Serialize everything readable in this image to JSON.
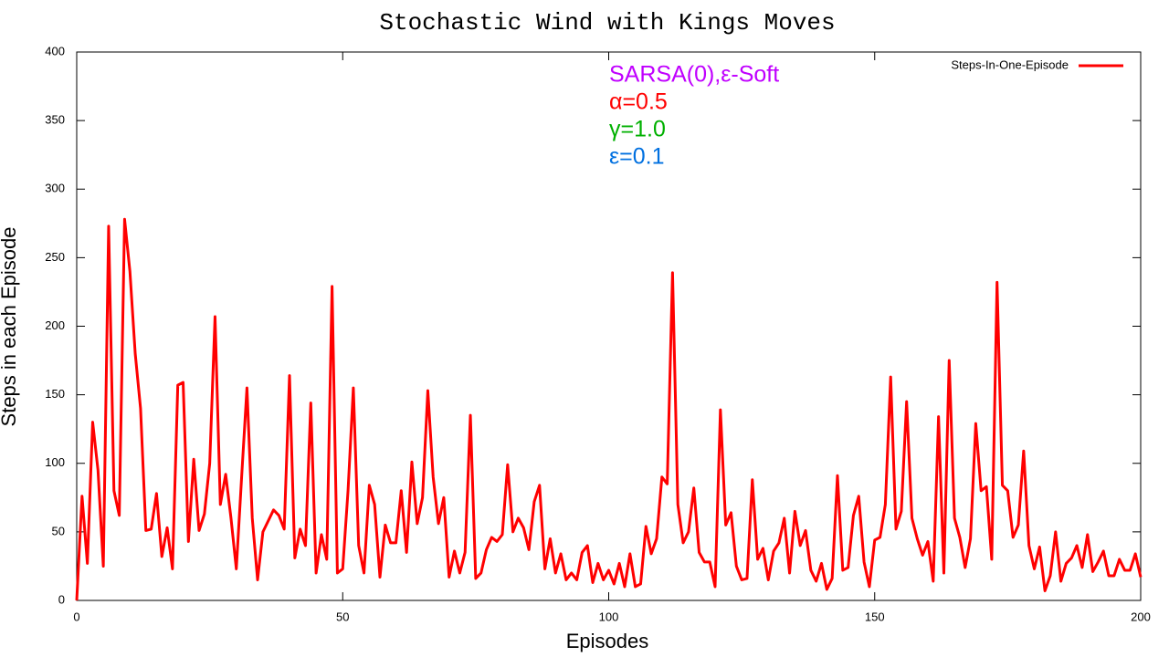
{
  "chart_data": {
    "type": "line",
    "title": "Stochastic Wind with Kings Moves",
    "x_label": "Episodes",
    "y_label": "Steps in each Episode",
    "x": [
      0,
      1,
      2,
      3,
      4,
      5,
      6,
      7,
      8,
      9,
      10,
      11,
      12,
      13,
      14,
      15,
      16,
      17,
      18,
      19,
      20,
      21,
      22,
      23,
      24,
      25,
      26,
      27,
      28,
      29,
      30,
      31,
      32,
      33,
      34,
      35,
      36,
      37,
      38,
      39,
      40,
      41,
      42,
      43,
      44,
      45,
      46,
      47,
      48,
      49,
      50,
      51,
      52,
      53,
      54,
      55,
      56,
      57,
      58,
      59,
      60,
      61,
      62,
      63,
      64,
      65,
      66,
      67,
      68,
      69,
      70,
      71,
      72,
      73,
      74,
      75,
      76,
      77,
      78,
      79,
      80,
      81,
      82,
      83,
      84,
      85,
      86,
      87,
      88,
      89,
      90,
      91,
      92,
      93,
      94,
      95,
      96,
      97,
      98,
      99,
      100,
      101,
      102,
      103,
      104,
      105,
      106,
      107,
      108,
      109,
      110,
      111,
      112,
      113,
      114,
      115,
      116,
      117,
      118,
      119,
      120,
      121,
      122,
      123,
      124,
      125,
      126,
      127,
      128,
      129,
      130,
      131,
      132,
      133,
      134,
      135,
      136,
      137,
      138,
      139,
      140,
      141,
      142,
      143,
      144,
      145,
      146,
      147,
      148,
      149,
      150,
      151,
      152,
      153,
      154,
      155,
      156,
      157,
      158,
      159,
      160,
      161,
      162,
      163,
      164,
      165,
      166,
      167,
      168,
      169,
      170,
      171,
      172,
      173,
      174,
      175,
      176,
      177,
      178,
      179,
      180,
      181,
      182,
      183,
      184,
      185,
      186,
      187,
      188,
      189,
      190,
      191,
      192,
      193,
      194,
      195,
      196,
      197,
      198,
      199,
      200
    ],
    "series": [
      {
        "name": "Steps-In-One-Episode",
        "color": "#ff0000",
        "values": [
          0,
          76,
          27,
          130,
          95,
          25,
          273,
          80,
          62,
          278,
          240,
          180,
          140,
          51,
          52,
          78,
          32,
          53,
          23,
          157,
          159,
          43,
          103,
          51,
          63,
          100,
          207,
          70,
          92,
          60,
          23,
          90,
          155,
          60,
          15,
          50,
          58,
          66,
          62,
          52,
          164,
          31,
          52,
          40,
          144,
          20,
          48,
          30,
          229,
          20,
          23,
          80,
          155,
          40,
          20,
          84,
          70,
          17,
          55,
          42,
          42,
          80,
          35,
          101,
          56,
          75,
          153,
          90,
          56,
          75,
          17,
          36,
          20,
          35,
          135,
          16,
          20,
          37,
          46,
          43,
          48,
          99,
          50,
          60,
          53,
          37,
          72,
          84,
          23,
          45,
          20,
          34,
          15,
          20,
          15,
          35,
          40,
          13,
          27,
          15,
          22,
          12,
          27,
          10,
          34,
          10,
          12,
          54,
          34,
          45,
          90,
          85,
          239,
          70,
          42,
          50,
          82,
          35,
          28,
          28,
          10,
          139,
          55,
          64,
          25,
          15,
          16,
          88,
          30,
          38,
          15,
          36,
          42,
          60,
          20,
          65,
          40,
          51,
          22,
          14,
          27,
          8,
          16,
          91,
          22,
          24,
          62,
          76,
          28,
          10,
          44,
          46,
          70,
          163,
          52,
          65,
          145,
          60,
          45,
          33,
          43,
          14,
          134,
          20,
          175,
          60,
          46,
          24,
          45,
          129,
          80,
          83,
          30,
          232,
          84,
          80,
          46,
          55,
          109,
          40,
          23,
          39,
          7,
          18,
          50,
          14,
          27,
          31,
          40,
          24,
          48,
          21,
          28,
          36,
          18,
          18,
          30,
          22,
          22,
          34,
          17
        ]
      }
    ],
    "annotations": [
      {
        "text": "SARSA(0),ε-Soft",
        "color": "#c000ff"
      },
      {
        "text": "α=0.5",
        "color": "#ff0000"
      },
      {
        "text": "γ=1.0",
        "color": "#00b000"
      },
      {
        "text": "ε=0.1",
        "color": "#0070e0"
      }
    ],
    "xlim": [
      0,
      200
    ],
    "xticks": [
      0,
      50,
      100,
      150,
      200
    ],
    "ylim": [
      0,
      400
    ],
    "yticks": [
      0,
      50,
      100,
      150,
      200,
      250,
      300,
      350,
      400
    ],
    "grid": false,
    "legend": "top-right"
  }
}
